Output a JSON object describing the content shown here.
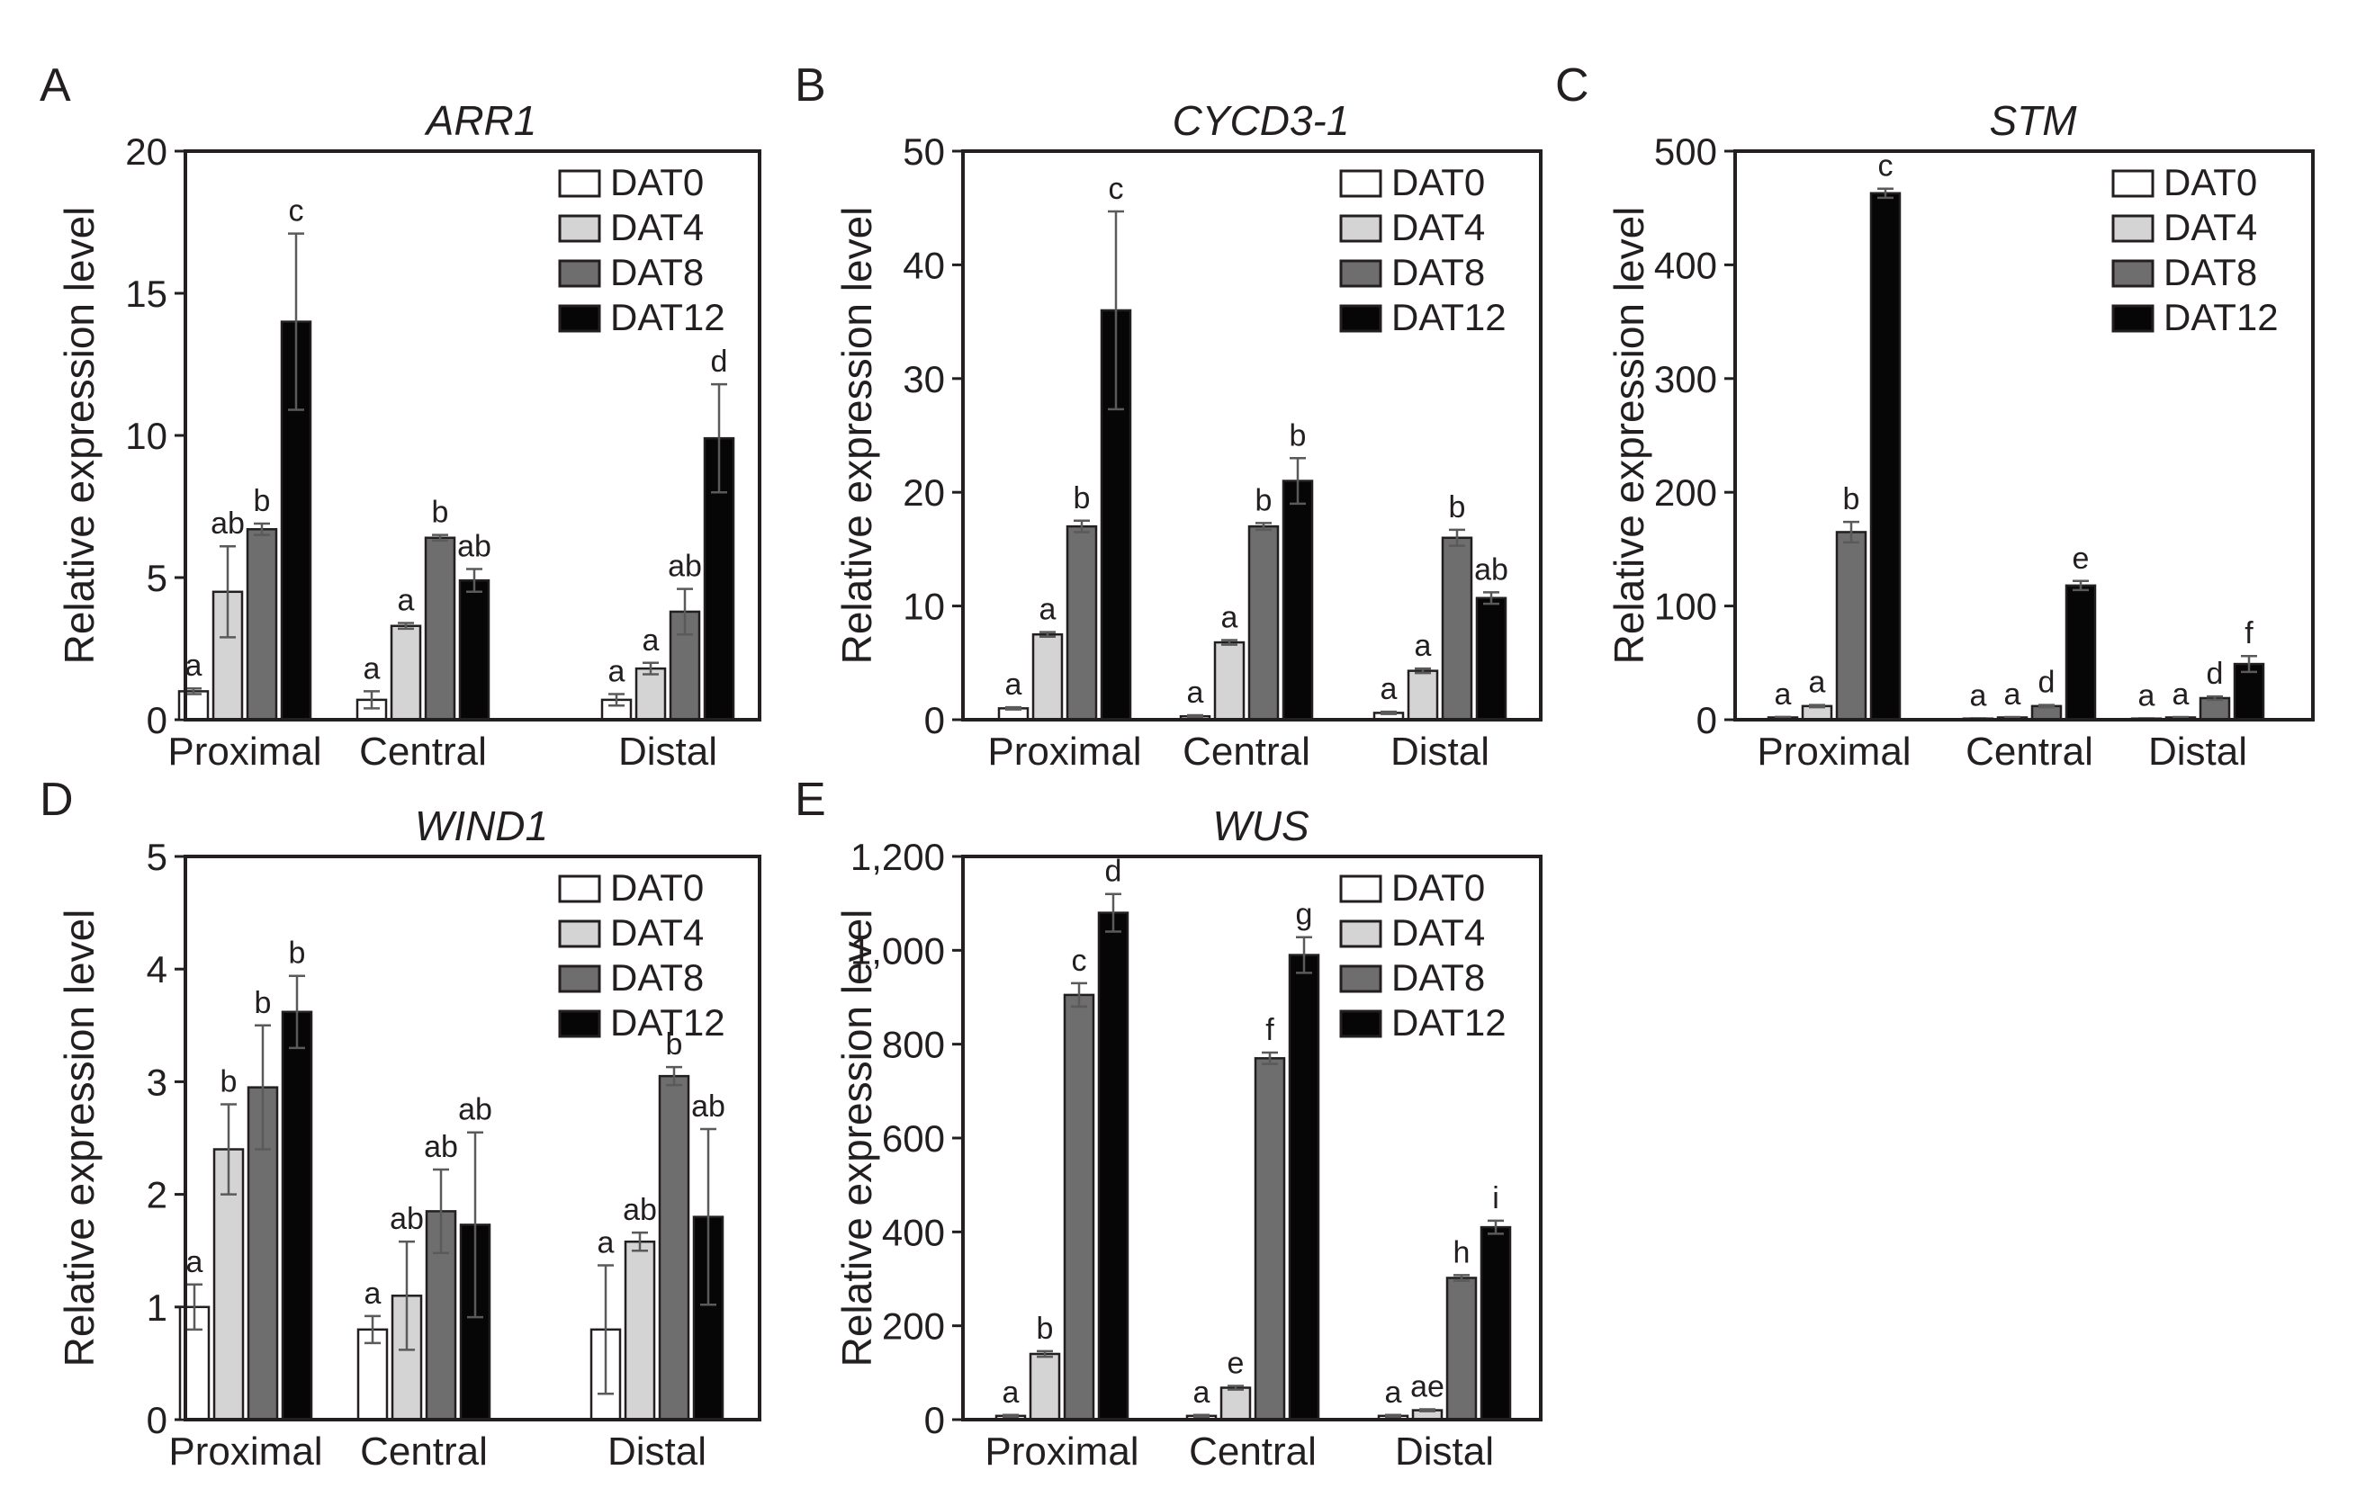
{
  "figure": {
    "series_colors": [
      "#ffffff",
      "#d4d4d4",
      "#6e6e6e",
      "#060606"
    ]
  },
  "chart_data": [
    {
      "panel": "A",
      "title": "ARR1",
      "type": "bar",
      "ylabel": "Relative expression level",
      "ylim": [
        0,
        20
      ],
      "yticks": [
        "0",
        "5",
        "10",
        "15",
        "20"
      ],
      "yticks_values": [
        0,
        5,
        10,
        15,
        20
      ],
      "categories": [
        "Proximal",
        "Central",
        "Distal"
      ],
      "legend_position": "top-right",
      "series": [
        {
          "name": "DAT0",
          "values": [
            1.0,
            0.7,
            0.7
          ],
          "errors": [
            0.1,
            0.3,
            0.2
          ],
          "letters": [
            "a",
            "a",
            "a"
          ]
        },
        {
          "name": "DAT4",
          "values": [
            4.5,
            3.3,
            1.8
          ],
          "errors": [
            1.6,
            0.1,
            0.2
          ],
          "letters": [
            "ab",
            "a",
            "a"
          ]
        },
        {
          "name": "DAT8",
          "values": [
            6.7,
            6.4,
            3.8
          ],
          "errors": [
            0.2,
            0.1,
            0.8
          ],
          "letters": [
            "b",
            "b",
            "ab"
          ]
        },
        {
          "name": "DAT12",
          "values": [
            14.0,
            4.9,
            9.9
          ],
          "errors": [
            3.1,
            0.4,
            1.9
          ],
          "letters": [
            "c",
            "ab",
            "d"
          ]
        }
      ]
    },
    {
      "panel": "B",
      "title": "CYCD3-1",
      "type": "bar",
      "ylabel": "Relative expression level",
      "ylim": [
        0,
        50
      ],
      "yticks": [
        "0",
        "10",
        "20",
        "30",
        "40",
        "50"
      ],
      "yticks_values": [
        0,
        10,
        20,
        30,
        40,
        50
      ],
      "categories": [
        "Proximal",
        "Central",
        "Distal"
      ],
      "legend_position": "top-right",
      "series": [
        {
          "name": "DAT0",
          "values": [
            1.0,
            0.3,
            0.6
          ],
          "errors": [
            0.1,
            0.1,
            0.1
          ],
          "letters": [
            "a",
            "a",
            "a"
          ]
        },
        {
          "name": "DAT4",
          "values": [
            7.5,
            6.8,
            4.3
          ],
          "errors": [
            0.2,
            0.2,
            0.2
          ],
          "letters": [
            "a",
            "a",
            "a"
          ]
        },
        {
          "name": "DAT8",
          "values": [
            17.0,
            17.0,
            16.0
          ],
          "errors": [
            0.5,
            0.3,
            0.7
          ],
          "letters": [
            "b",
            "b",
            "b"
          ]
        },
        {
          "name": "DAT12",
          "values": [
            36.0,
            21.0,
            10.7
          ],
          "errors": [
            8.7,
            2.0,
            0.5
          ],
          "letters": [
            "c",
            "b",
            "ab"
          ]
        }
      ]
    },
    {
      "panel": "C",
      "title": "STM",
      "type": "bar",
      "ylabel": "Relative expression level",
      "ylim": [
        0,
        500
      ],
      "yticks": [
        "0",
        "100",
        "200",
        "300",
        "400",
        "500"
      ],
      "yticks_values": [
        0,
        100,
        200,
        300,
        400,
        500
      ],
      "categories": [
        "Proximal",
        "Central",
        "Distal"
      ],
      "legend_position": "top-right",
      "series": [
        {
          "name": "DAT0",
          "values": [
            2,
            1,
            1
          ],
          "errors": [
            0.5,
            0.3,
            0.3
          ],
          "letters": [
            "a",
            "a",
            "a"
          ]
        },
        {
          "name": "DAT4",
          "values": [
            12,
            2,
            2
          ],
          "errors": [
            1,
            0.4,
            0.4
          ],
          "letters": [
            "a",
            "a",
            "a"
          ]
        },
        {
          "name": "DAT8",
          "values": [
            165,
            12,
            19
          ],
          "errors": [
            9,
            1,
            1.5
          ],
          "letters": [
            "b",
            "d",
            "d"
          ]
        },
        {
          "name": "DAT12",
          "values": [
            463,
            118,
            49
          ],
          "errors": [
            4,
            4,
            7
          ],
          "letters": [
            "c",
            "e",
            "f"
          ]
        }
      ]
    },
    {
      "panel": "D",
      "title": "WIND1",
      "type": "bar",
      "ylabel": "Relative expression level",
      "ylim": [
        0,
        5
      ],
      "yticks": [
        "0",
        "1",
        "2",
        "3",
        "4",
        "5"
      ],
      "yticks_values": [
        0,
        1,
        2,
        3,
        4,
        5
      ],
      "categories": [
        "Proximal",
        "Central",
        "Distal"
      ],
      "legend_position": "top-right",
      "series": [
        {
          "name": "DAT0",
          "values": [
            1.0,
            0.8,
            0.8
          ],
          "errors": [
            0.2,
            0.12,
            0.57
          ],
          "letters": [
            "a",
            "a",
            "a"
          ]
        },
        {
          "name": "DAT4",
          "values": [
            2.4,
            1.1,
            1.58
          ],
          "errors": [
            0.4,
            0.48,
            0.08
          ],
          "letters": [
            "b",
            "ab",
            "ab"
          ]
        },
        {
          "name": "DAT8",
          "values": [
            2.95,
            1.85,
            3.05
          ],
          "errors": [
            0.55,
            0.37,
            0.08
          ],
          "letters": [
            "b",
            "ab",
            "b"
          ]
        },
        {
          "name": "DAT12",
          "values": [
            3.62,
            1.73,
            1.8
          ],
          "errors": [
            0.32,
            0.82,
            0.78
          ],
          "letters": [
            "b",
            "ab",
            "ab"
          ]
        }
      ]
    },
    {
      "panel": "E",
      "title": "WUS",
      "type": "bar",
      "ylabel": "Relative expression level",
      "ylim": [
        0,
        1200
      ],
      "yticks": [
        "0",
        "200",
        "400",
        "600",
        "800",
        "1,000",
        "1,200"
      ],
      "yticks_values": [
        0,
        200,
        400,
        600,
        800,
        1000,
        1200
      ],
      "categories": [
        "Proximal",
        "Central",
        "Distal"
      ],
      "legend_position": "top-right",
      "series": [
        {
          "name": "DAT0",
          "values": [
            8,
            8,
            8
          ],
          "errors": [
            2,
            2,
            2
          ],
          "letters": [
            "a",
            "a",
            "a"
          ]
        },
        {
          "name": "DAT4",
          "values": [
            140,
            68,
            20
          ],
          "errors": [
            6,
            4,
            2
          ],
          "letters": [
            "b",
            "e",
            "ae"
          ]
        },
        {
          "name": "DAT8",
          "values": [
            905,
            770,
            302
          ],
          "errors": [
            25,
            12,
            6
          ],
          "letters": [
            "c",
            "f",
            "h"
          ]
        },
        {
          "name": "DAT12",
          "values": [
            1080,
            990,
            410
          ],
          "errors": [
            40,
            38,
            14
          ],
          "letters": [
            "d",
            "g",
            "i"
          ]
        }
      ]
    }
  ]
}
